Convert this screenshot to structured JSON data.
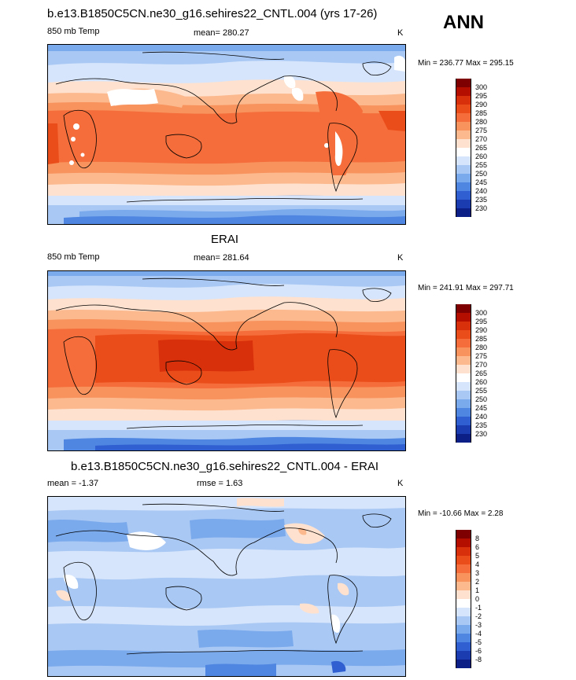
{
  "season": "ANN",
  "panels": [
    {
      "id": "model",
      "title": "b.e13.B1850C5CN.ne30_g16.sehires22_CNTL.004 (yrs 17-26)",
      "left_label": "850 mb Temp",
      "stat": "mean= 280.27",
      "stat2": "",
      "units": "K",
      "minmax": "Min = 236.77 Max = 295.15",
      "colorbar": {
        "labels": [
          "300",
          "295",
          "290",
          "285",
          "280",
          "275",
          "270",
          "265",
          "260",
          "255",
          "250",
          "245",
          "240",
          "235",
          "230"
        ],
        "colors": [
          "#7f0000",
          "#b30e00",
          "#d8300b",
          "#eb4d1a",
          "#f46d3a",
          "#f8935e",
          "#fcb98e",
          "#fee2cf",
          "#ffffff",
          "#d6e5fb",
          "#a9c8f4",
          "#7aa9ec",
          "#4f86e1",
          "#2f5fd0",
          "#1a3cb0",
          "#0b1f86"
        ]
      }
    },
    {
      "id": "obs",
      "title": "ERAI",
      "left_label": "850 mb Temp",
      "stat": "mean= 281.64",
      "stat2": "",
      "units": "K",
      "minmax": "Min = 241.91 Max = 297.71",
      "colorbar": {
        "labels": [
          "300",
          "295",
          "290",
          "285",
          "280",
          "275",
          "270",
          "265",
          "260",
          "255",
          "250",
          "245",
          "240",
          "235",
          "230"
        ],
        "colors": [
          "#7f0000",
          "#b30e00",
          "#d8300b",
          "#eb4d1a",
          "#f46d3a",
          "#f8935e",
          "#fcb98e",
          "#fee2cf",
          "#ffffff",
          "#d6e5fb",
          "#a9c8f4",
          "#7aa9ec",
          "#4f86e1",
          "#2f5fd0",
          "#1a3cb0",
          "#0b1f86"
        ]
      }
    },
    {
      "id": "diff",
      "title": "b.e13.B1850C5CN.ne30_g16.sehires22_CNTL.004 - ERAI",
      "left_label": "mean =  -1.37",
      "stat": "rmse =   1.63",
      "stat2": "",
      "units": "K",
      "minmax": "Min = -10.66 Max =   2.28",
      "colorbar": {
        "labels": [
          "8",
          "6",
          "5",
          "4",
          "3",
          "2",
          "1",
          "0",
          "-1",
          "-2",
          "-3",
          "-4",
          "-5",
          "-6",
          "-8"
        ],
        "colors": [
          "#7f0000",
          "#b30e00",
          "#d8300b",
          "#eb4d1a",
          "#f46d3a",
          "#f8935e",
          "#fcb98e",
          "#fee2cf",
          "#ffffff",
          "#d6e5fb",
          "#a9c8f4",
          "#7aa9ec",
          "#4f86e1",
          "#2f5fd0",
          "#1a3cb0",
          "#0b1f86"
        ]
      }
    }
  ]
}
